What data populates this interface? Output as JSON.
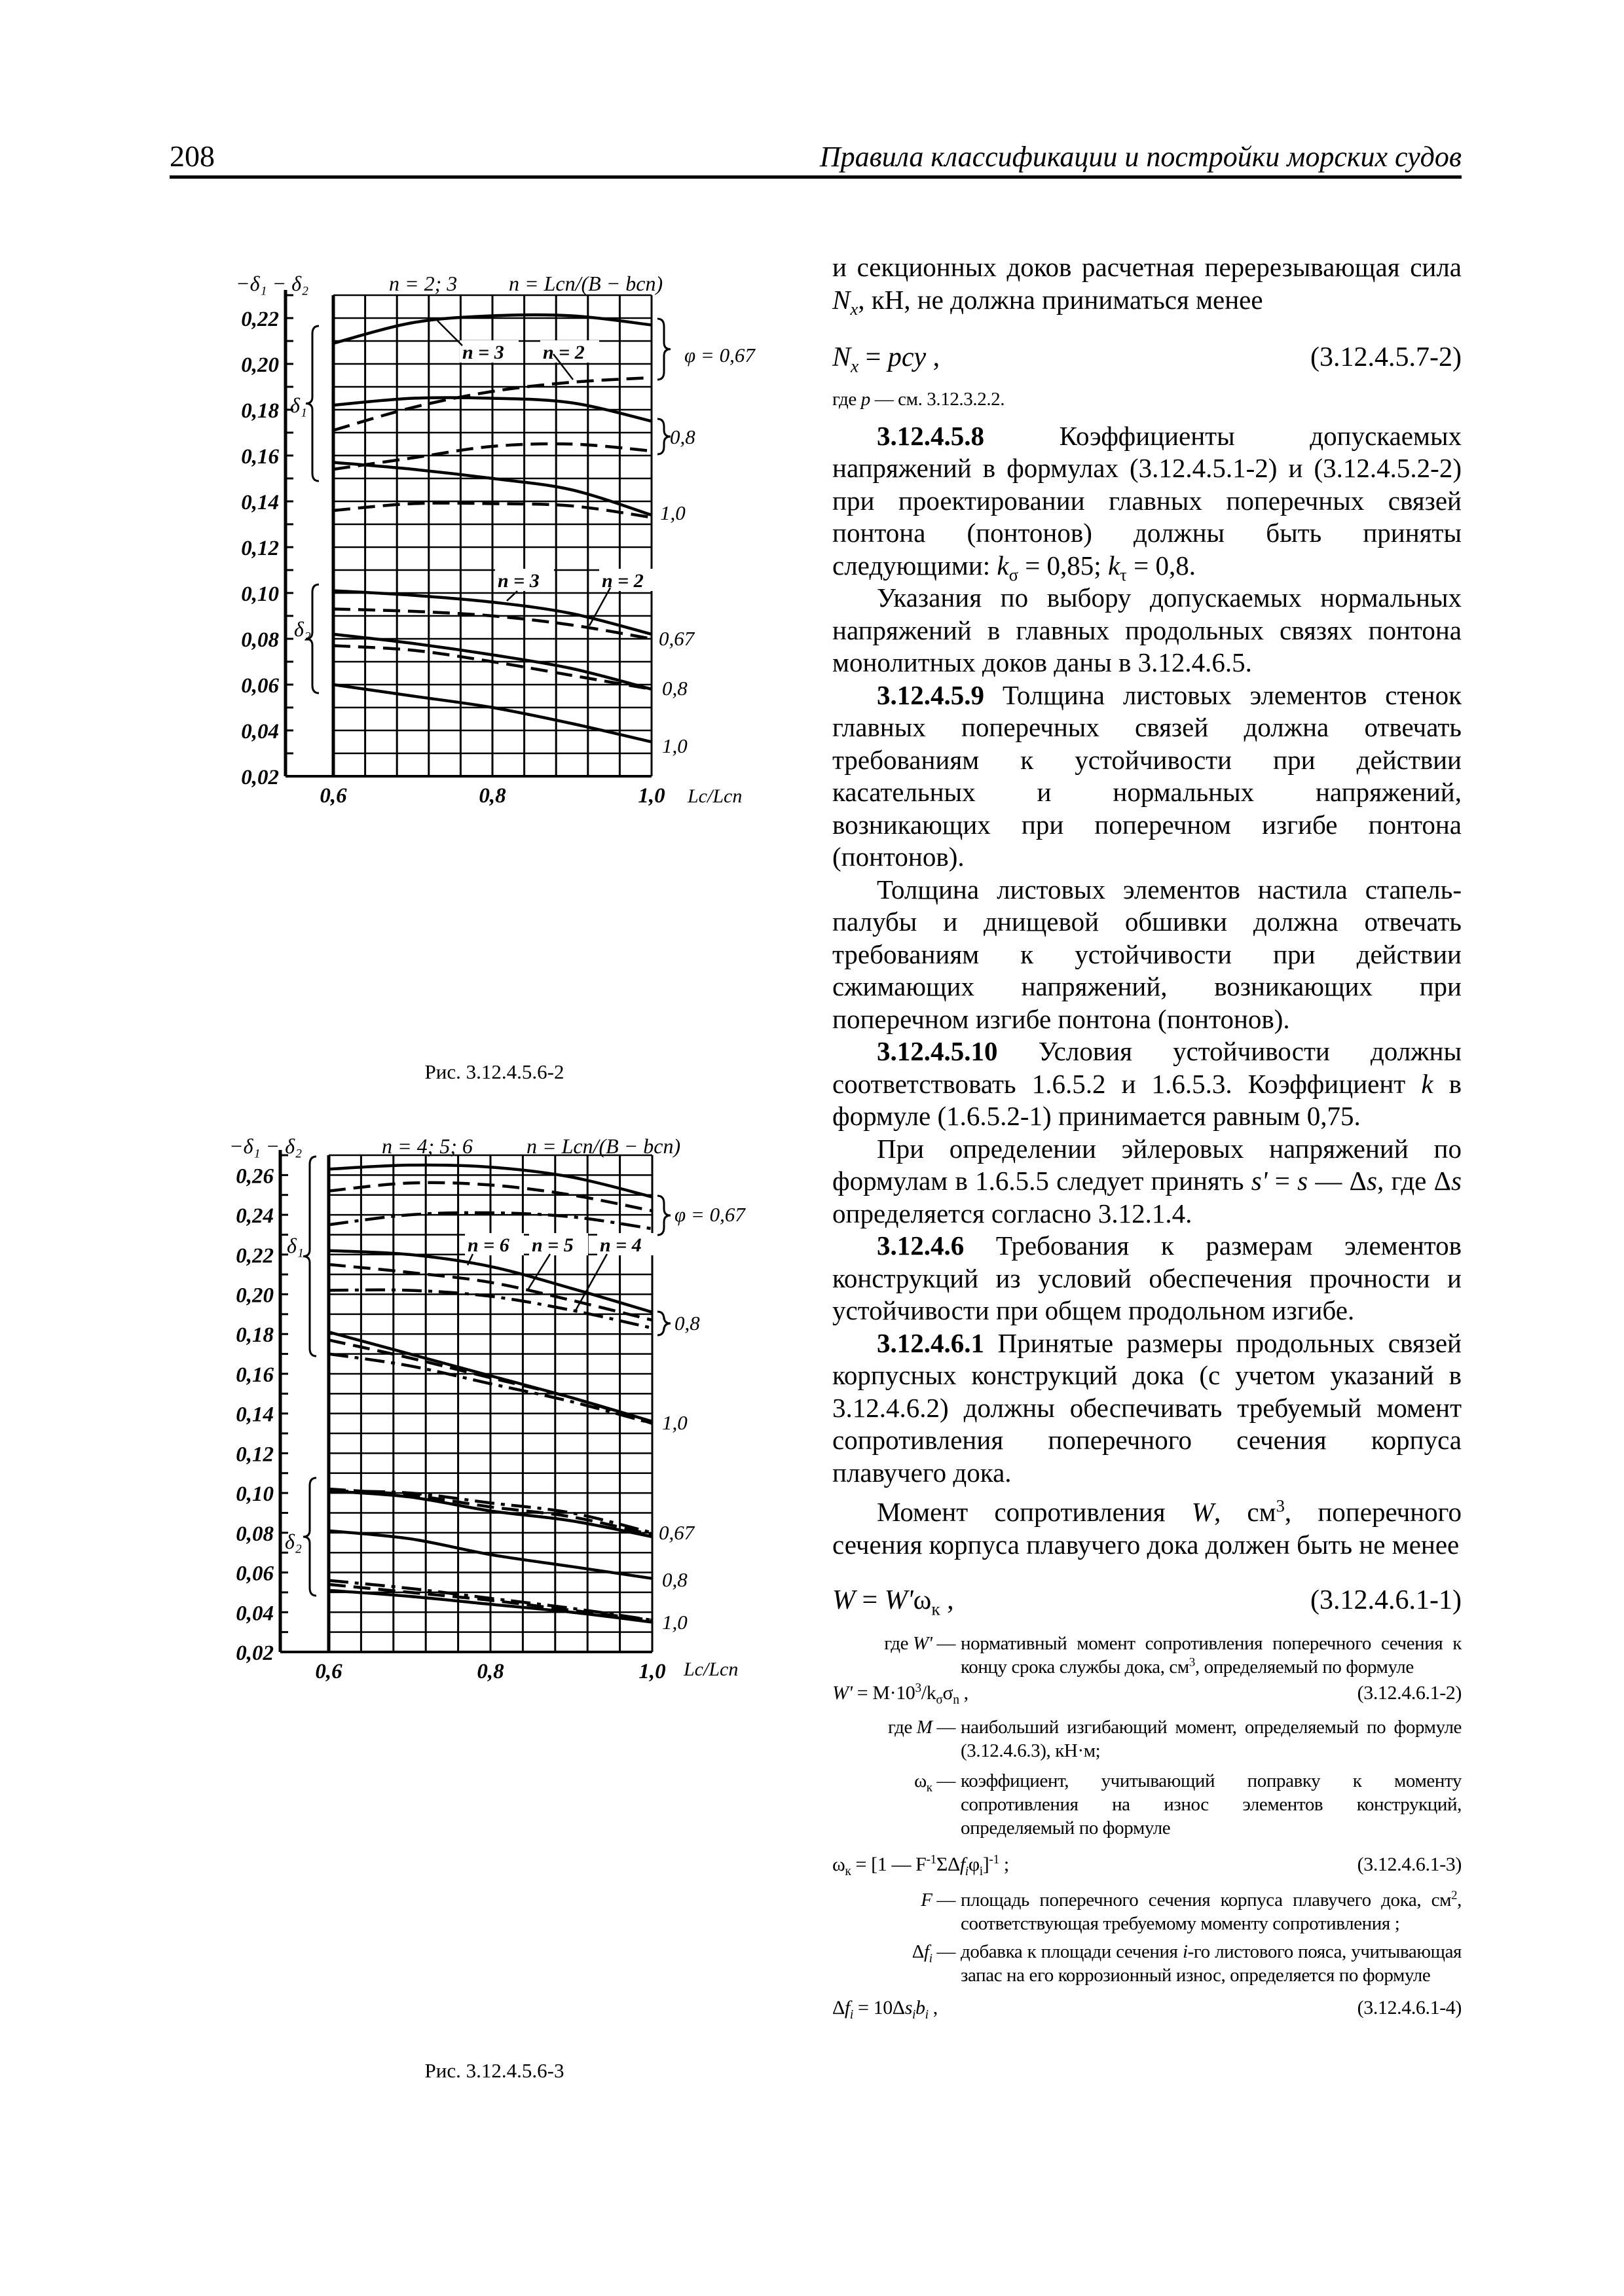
{
  "header": {
    "page_number": "208",
    "title": "Правила классификации и постройки морских судов"
  },
  "captions": [
    "Рис. 3.12.4.5.6-2",
    "Рис. 3.12.4.5.6-3"
  ],
  "col": {
    "b0": [
      [
        "и секционных доков расчетная перерезывающая сила ",
        ""
      ],
      [
        "N",
        "i"
      ],
      [
        "x",
        "isub"
      ],
      [
        ", кН, не должна приниматься менее",
        ""
      ]
    ],
    "f0": [
      [
        "N",
        "i"
      ],
      [
        "x",
        "isub"
      ],
      [
        " = ",
        ""
      ],
      [
        "pcy",
        "i"
      ],
      [
        " ,",
        ""
      ]
    ],
    "f0_num": "(3.12.4.5.7-2)",
    "b1": [
      [
        "где        ",
        ""
      ],
      [
        "p",
        "i"
      ],
      [
        " —  см. 3.12.3.2.2.",
        ""
      ]
    ],
    "b2": [
      [
        "3.12.4.5.8",
        "b"
      ],
      [
        " Коэффициенты допускаемых напряжений в формулах (3.12.4.5.1-2) и (3.12.4.5.2-2) при проектировании главных поперечных связей понтона (понтонов) должны быть приняты следующими: ",
        ""
      ],
      [
        "k",
        "i"
      ],
      [
        "σ",
        "sub"
      ],
      [
        " = 0,85; ",
        ""
      ],
      [
        "k",
        "i"
      ],
      [
        "τ",
        "sub"
      ],
      [
        " = 0,8.",
        ""
      ]
    ],
    "b3": [
      [
        "Указания по выбору допускаемых нормальных напряжений в главных продольных связях понтона монолитных доков даны в 3.12.4.6.5.",
        ""
      ]
    ],
    "b4": [
      [
        "3.12.4.5.9",
        "b"
      ],
      [
        " Толщина листовых элементов стенок главных поперечных связей должна отвечать требованиям к устойчивости при действии касательных и нормальных напряжений, возникающих при поперечном изгибе понтона (понтонов).",
        ""
      ]
    ],
    "b5": [
      [
        "Толщина листовых элементов настила стапель-палубы и днищевой обшивки должна отвечать требованиям к устойчивости при действии сжимающих напряжений, возникающих при поперечном изгибе понтона (понтонов).",
        ""
      ]
    ],
    "b6": [
      [
        "3.12.4.5.10",
        "b"
      ],
      [
        " Условия устойчивости должны соответствовать 1.6.5.2 и 1.6.5.3. Коэффициент ",
        ""
      ],
      [
        "k",
        "i"
      ],
      [
        " в формуле (1.6.5.2-1) принимается равным 0,75.",
        ""
      ]
    ],
    "b7": [
      [
        "При определении эйлеровых напряжений по формулам в 1.6.5.5 следует принять ",
        ""
      ],
      [
        "s'",
        "i"
      ],
      [
        " = ",
        ""
      ],
      [
        "s",
        "i"
      ],
      [
        " — Δ",
        ""
      ],
      [
        "s",
        "i"
      ],
      [
        ", где Δ",
        ""
      ],
      [
        "s",
        "i"
      ],
      [
        " определяется согласно 3.12.1.4.",
        ""
      ]
    ],
    "b8": [
      [
        "3.12.4.6",
        "b"
      ],
      [
        " Требования к размерам элементов конструкций из условий обеспечения прочности и устойчивости при общем продольном изгибе.",
        ""
      ]
    ],
    "b9": [
      [
        "3.12.4.6.1",
        "b"
      ],
      [
        " Принятые размеры продольных связей корпусных конструкций дока (с учетом указаний в 3.12.4.6.2) должны обеспечивать требуемый момент сопротивления поперечного сечения корпуса плавучего дока.",
        ""
      ]
    ],
    "b10": [
      [
        "Момент сопротивления ",
        ""
      ],
      [
        "W",
        "i"
      ],
      [
        ", см",
        ""
      ],
      [
        "3",
        "sup"
      ],
      [
        ", поперечного сечения корпуса плавучего дока должен быть не менее",
        ""
      ]
    ],
    "f1": [
      [
        "W",
        "i"
      ],
      [
        " = ",
        ""
      ],
      [
        "W'",
        "i"
      ],
      [
        "ω",
        ""
      ],
      [
        "к",
        "sub"
      ],
      [
        " ,",
        ""
      ]
    ],
    "f1_num": "(3.12.4.6.1-1)",
    "d0_term": [
      [
        "где ",
        ""
      ],
      [
        "W'",
        "i"
      ],
      [
        " —",
        ""
      ]
    ],
    "d0_text": [
      [
        "нормативный момент сопротивления поперечного сечения к концу срока службы дока, см",
        ""
      ],
      [
        "3",
        "sup"
      ],
      [
        ", определяемый по формуле",
        ""
      ]
    ],
    "f2": [
      [
        "W'",
        "i"
      ],
      [
        " = M·10",
        ""
      ],
      [
        "3",
        "sup"
      ],
      [
        "/k",
        ""
      ],
      [
        "σ",
        "sub"
      ],
      [
        "σ",
        ""
      ],
      [
        "n",
        "sub"
      ],
      [
        " ,",
        ""
      ]
    ],
    "f2_num": "(3.12.4.6.1-2)",
    "d1_term": [
      [
        "где ",
        ""
      ],
      [
        "M",
        "i"
      ],
      [
        " —",
        ""
      ]
    ],
    "d1_text": [
      [
        "наибольший изгибающий момент, определяемый по формуле (3.12.4.6.3), кН·м;",
        ""
      ]
    ],
    "d2_term": [
      [
        "ω",
        ""
      ],
      [
        "к",
        "sub"
      ],
      [
        " —",
        ""
      ]
    ],
    "d2_text": [
      [
        "коэффициент, учитывающий поправку к моменту сопротивления на износ элементов конструкций, определяемый по формуле",
        ""
      ]
    ],
    "f3": [
      [
        "ω",
        ""
      ],
      [
        "к",
        "sub"
      ],
      [
        " = [1 — F",
        ""
      ],
      [
        "-1",
        "sup"
      ],
      [
        "ΣΔ",
        ""
      ],
      [
        "f",
        "i"
      ],
      [
        "i",
        "isub"
      ],
      [
        "φ",
        ""
      ],
      [
        "i",
        "sub"
      ],
      [
        "]",
        ""
      ],
      [
        "-1",
        "sup"
      ],
      [
        " ;",
        ""
      ]
    ],
    "f3_num": "(3.12.4.6.1-3)",
    "d3_term": [
      [
        "F",
        "i"
      ],
      [
        " —",
        ""
      ]
    ],
    "d3_text": [
      [
        "площадь поперечного сечения корпуса плавучего дока, см",
        ""
      ],
      [
        "2",
        "sup"
      ],
      [
        ", соответствующая требуемому моменту сопротивления ;",
        ""
      ]
    ],
    "d4_term": [
      [
        "Δ",
        ""
      ],
      [
        "f",
        "i"
      ],
      [
        "i",
        "isub"
      ],
      [
        " —",
        ""
      ]
    ],
    "d4_text": [
      [
        "добавка к площади сечения ",
        ""
      ],
      [
        "i",
        "i"
      ],
      [
        "-го листового пояса, учитывающая запас на его коррозионный износ, определяется по формуле",
        ""
      ]
    ],
    "f4": [
      [
        "Δ",
        ""
      ],
      [
        "f",
        "i"
      ],
      [
        "i",
        "isub"
      ],
      [
        " = 10Δ",
        ""
      ],
      [
        "s",
        "i"
      ],
      [
        "i",
        "isub"
      ],
      [
        "b",
        "i"
      ],
      [
        "i",
        "isub"
      ],
      [
        " ,",
        ""
      ]
    ],
    "f4_num": "(3.12.4.6.1-4)"
  },
  "chart_data": [
    {
      "type": "line",
      "ylabel": "−δ₁ − δ₂",
      "xlabel": "Lс/Lсп",
      "header_n": "n = 2; 3",
      "header_formula": "n = Lсп/(B − bсп)",
      "xlim": [
        0.6,
        1.0
      ],
      "ylim": [
        0.02,
        0.23
      ],
      "grid": true,
      "x": [
        0.6,
        0.7,
        0.8,
        0.9,
        1.0
      ],
      "xtick_labels": [
        "0,6",
        "0,8",
        "1,0"
      ],
      "ytick_labels": [
        "0,02",
        "0,04",
        "0,06",
        "0,08",
        "0,10",
        "0,12",
        "0,14",
        "0,16",
        "0,18",
        "0,20",
        "0,22"
      ],
      "group_labels": [
        "δ₁",
        "δ₂"
      ],
      "phi_labels": [
        "φ = 0,67",
        "0,8",
        "1,0",
        "0,67",
        "0,8",
        "1,0"
      ],
      "n_labels": [
        "n = 3",
        "n = 2",
        "n = 3",
        "n = 2"
      ],
      "series": [
        {
          "group": "δ₁",
          "phi": "0,67",
          "n": "3",
          "style": "solid",
          "values": [
            0.209,
            0.218,
            0.221,
            0.221,
            0.217
          ]
        },
        {
          "group": "δ₁",
          "phi": "0,67",
          "n": "2",
          "style": "dashed",
          "values": [
            0.171,
            0.181,
            0.188,
            0.192,
            0.194
          ]
        },
        {
          "group": "δ₁",
          "phi": "0,8",
          "n": "3",
          "style": "solid",
          "values": [
            0.182,
            0.185,
            0.185,
            0.183,
            0.175
          ]
        },
        {
          "group": "δ₁",
          "phi": "0,8",
          "n": "2",
          "style": "dashed",
          "values": [
            0.154,
            0.159,
            0.164,
            0.165,
            0.162
          ]
        },
        {
          "group": "δ₁",
          "phi": "1,0",
          "n": "3",
          "style": "solid",
          "values": [
            0.157,
            0.154,
            0.15,
            0.145,
            0.134
          ]
        },
        {
          "group": "δ₁",
          "phi": "1,0",
          "n": "2",
          "style": "dashed",
          "values": [
            0.136,
            0.139,
            0.139,
            0.138,
            0.133
          ]
        },
        {
          "group": "δ₂",
          "phi": "0,67",
          "n": "3",
          "style": "solid",
          "values": [
            0.101,
            0.099,
            0.096,
            0.091,
            0.082
          ]
        },
        {
          "group": "δ₂",
          "phi": "0,67",
          "n": "2",
          "style": "dashed",
          "values": [
            0.093,
            0.092,
            0.09,
            0.086,
            0.08
          ]
        },
        {
          "group": "δ₂",
          "phi": "0,8",
          "n": "3",
          "style": "solid",
          "values": [
            0.082,
            0.078,
            0.073,
            0.067,
            0.058
          ]
        },
        {
          "group": "δ₂",
          "phi": "0,8",
          "n": "2",
          "style": "dashed",
          "values": [
            0.077,
            0.075,
            0.07,
            0.064,
            0.058
          ]
        },
        {
          "group": "δ₂",
          "phi": "1,0",
          "n": "2; 3",
          "style": "solid",
          "values": [
            0.06,
            0.055,
            0.05,
            0.043,
            0.035
          ]
        }
      ]
    },
    {
      "type": "line",
      "ylabel": "−δ₁ − δ₂",
      "xlabel": "Lс/Lсп",
      "header_n": "n = 4; 5; 6",
      "header_formula": "n = Lсп/(B − bсп)",
      "xlim": [
        0.6,
        1.0
      ],
      "ylim": [
        0.02,
        0.27
      ],
      "grid": true,
      "x": [
        0.6,
        0.7,
        0.8,
        0.9,
        1.0
      ],
      "xtick_labels": [
        "0,6",
        "0,8",
        "1,0"
      ],
      "ytick_labels": [
        "0,02",
        "0,04",
        "0,06",
        "0,08",
        "0,10",
        "0,12",
        "0,14",
        "0,16",
        "0,18",
        "0,20",
        "0,22",
        "0,24",
        "0,26"
      ],
      "group_labels": [
        "δ₁",
        "δ₂"
      ],
      "phi_labels": [
        "φ = 0,67",
        "0,8",
        "1,0",
        "0,67",
        "0,8",
        "1,0"
      ],
      "n_labels": [
        "n = 6",
        "n = 5",
        "n = 4"
      ],
      "series": [
        {
          "group": "δ₁",
          "phi": "0,67",
          "n": "6",
          "style": "solid",
          "values": [
            0.263,
            0.265,
            0.264,
            0.259,
            0.249
          ]
        },
        {
          "group": "δ₁",
          "phi": "0,67",
          "n": "5",
          "style": "dashed",
          "values": [
            0.252,
            0.256,
            0.255,
            0.25,
            0.242
          ]
        },
        {
          "group": "δ₁",
          "phi": "0,67",
          "n": "4",
          "style": "dashdot",
          "values": [
            0.235,
            0.24,
            0.241,
            0.239,
            0.233
          ]
        },
        {
          "group": "δ₁",
          "phi": "0,8",
          "n": "6",
          "style": "solid",
          "values": [
            0.222,
            0.22,
            0.214,
            0.203,
            0.191
          ]
        },
        {
          "group": "δ₁",
          "phi": "0,8",
          "n": "5",
          "style": "dashed",
          "values": [
            0.215,
            0.211,
            0.206,
            0.197,
            0.187
          ]
        },
        {
          "group": "δ₁",
          "phi": "0,8",
          "n": "4",
          "style": "dashdot",
          "values": [
            0.202,
            0.202,
            0.199,
            0.192,
            0.183
          ]
        },
        {
          "group": "δ₁",
          "phi": "1,0",
          "n": "6",
          "style": "solid",
          "values": [
            0.181,
            0.17,
            0.159,
            0.148,
            0.136
          ]
        },
        {
          "group": "δ₁",
          "phi": "1,0",
          "n": "5",
          "style": "dashed",
          "values": [
            0.177,
            0.168,
            0.158,
            0.148,
            0.135
          ]
        },
        {
          "group": "δ₁",
          "phi": "1,0",
          "n": "4",
          "style": "dashdot",
          "values": [
            0.17,
            0.164,
            0.155,
            0.146,
            0.135
          ]
        },
        {
          "group": "δ₂",
          "phi": "0,67",
          "n": "6",
          "style": "solid",
          "values": [
            0.101,
            0.098,
            0.091,
            0.086,
            0.078
          ]
        },
        {
          "group": "δ₂",
          "phi": "0,67",
          "n": "5",
          "style": "dashed",
          "values": [
            0.102,
            0.099,
            0.093,
            0.088,
            0.079
          ]
        },
        {
          "group": "δ₂",
          "phi": "0,67",
          "n": "4",
          "style": "dashdot",
          "values": [
            0.101,
            0.1,
            0.095,
            0.09,
            0.08
          ]
        },
        {
          "group": "δ₂",
          "phi": "0,8",
          "n": "4; 5; 6",
          "style": "solid",
          "values": [
            0.081,
            0.077,
            0.069,
            0.063,
            0.057
          ]
        },
        {
          "group": "δ₂",
          "phi": "1,0",
          "n": "6",
          "style": "solid",
          "values": [
            0.051,
            0.048,
            0.044,
            0.04,
            0.035
          ]
        },
        {
          "group": "δ₂",
          "phi": "1,0",
          "n": "5",
          "style": "dashed",
          "values": [
            0.054,
            0.05,
            0.046,
            0.041,
            0.036
          ]
        },
        {
          "group": "δ₂",
          "phi": "1,0",
          "n": "4",
          "style": "dashdot",
          "values": [
            0.056,
            0.052,
            0.047,
            0.042,
            0.036
          ]
        }
      ]
    }
  ]
}
